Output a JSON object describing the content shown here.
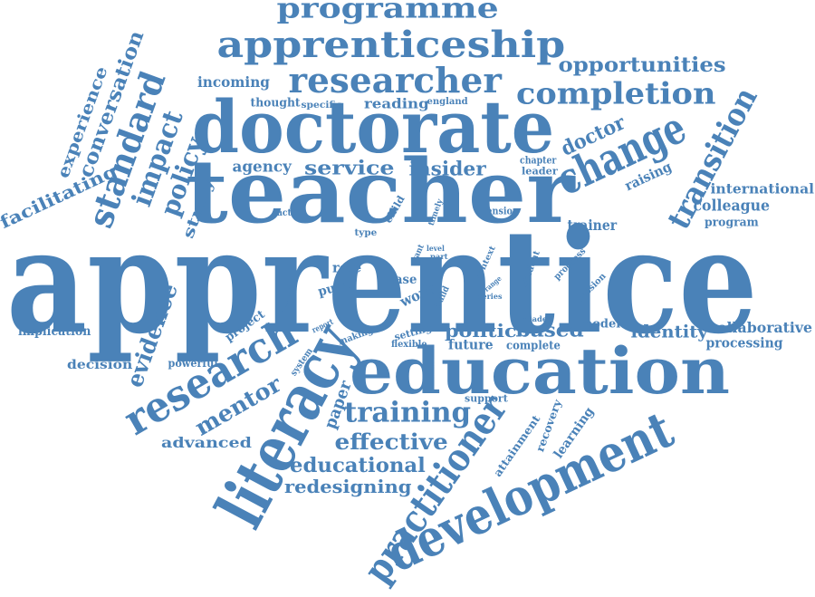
{
  "color": "#4a82b8",
  "words": {
    "apprentice": "apprentice",
    "teacher": "teacher",
    "doctorate": "doctorate",
    "education": "education",
    "literacy": "literacy",
    "development": "development",
    "practitioner": "practitioner",
    "research": "research",
    "apprenticeship": "apprenticeship",
    "researcher": "researcher",
    "change": "change",
    "completion": "completion",
    "programme": "programme",
    "opportunities": "opportunities",
    "transition": "transition",
    "standard": "standard",
    "impact": "impact",
    "policy": "policy",
    "conversation": "conversation",
    "experience": "experience",
    "facilitating": "facilitating",
    "study": "study",
    "incoming": "incoming",
    "thought": "thought",
    "specific": "specific",
    "reading": "reading",
    "england": "england",
    "doctor": "doctor",
    "agency": "agency",
    "service": "service",
    "insider": "insider",
    "chapter": "chapter",
    "leader": "leader",
    "raising": "raising",
    "international": "international",
    "colleague": "colleague",
    "program": "program",
    "trainer": "trainer",
    "action": "action",
    "child": "child",
    "timely": "timely",
    "tension": "tension",
    "type": "type",
    "level": "level",
    "part": "part",
    "want": "want",
    "context": "context",
    "range": "range",
    "series": "series",
    "student": "student",
    "progress": "progress",
    "session": "session",
    "role": "role",
    "case": "case",
    "work": "work",
    "pupil": "pupil",
    "lesson": "lesson",
    "build": "build",
    "evidence": "evidence",
    "implication": "implication",
    "project": "project",
    "report": "report",
    "making": "making",
    "setting": "setting",
    "flexible": "flexible",
    "politic": "politic",
    "based": "based",
    "model": "model",
    "reader": "reader",
    "future": "future",
    "complete": "complete",
    "identity": "identity",
    "collaborative": "collaborative",
    "processing": "processing",
    "decision": "decision",
    "powerful": "powerful",
    "system": "system",
    "mentor": "mentor",
    "paper": "paper",
    "support": "support",
    "training": "training",
    "effective": "effective",
    "advanced": "advanced",
    "educational": "educational",
    "redesigning": "redesigning",
    "attainment": "attainment",
    "recovery": "recovery",
    "learning": "learning"
  }
}
